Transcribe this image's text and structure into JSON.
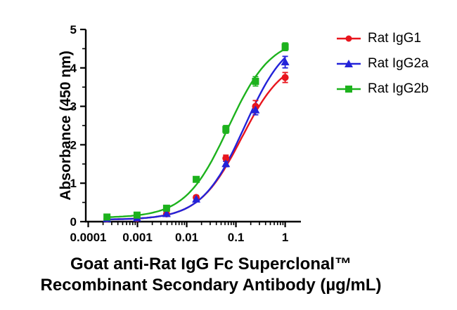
{
  "chart_data": {
    "type": "scatter-line",
    "title": "",
    "xlabel_line1": "Goat anti-Rat IgG Fc Superclonal™",
    "xlabel_line2": "Recombinant Secondary Antibody (µg/mL)",
    "ylabel": "Absorbance (450 nm)",
    "x_scale": "log",
    "grid": false,
    "legend_position": "right-top",
    "xlim_log10": [
      -4.05,
      0.32
    ],
    "ylim": [
      0,
      5
    ],
    "x_tick_values": [
      0.0001,
      0.001,
      0.01,
      0.1,
      1
    ],
    "x_tick_labels": [
      "0.0001",
      "0.001",
      "0.01",
      "0.1",
      "1"
    ],
    "y_tick_values": [
      0,
      1,
      2,
      3,
      4,
      5
    ],
    "y_minor_step": 0.5,
    "x": [
      0.00024,
      0.00098,
      0.0039,
      0.0156,
      0.0625,
      0.25,
      1
    ],
    "series": [
      {
        "name": "Rat IgG1",
        "color": "#e8151d",
        "marker": "circle",
        "values": [
          0.07,
          0.08,
          0.2,
          0.63,
          1.65,
          3.0,
          3.75
        ],
        "errors": [
          0.03,
          0.03,
          0.04,
          0.05,
          0.08,
          0.15,
          0.13
        ],
        "fit": {
          "bottom": 0.05,
          "top": 4.3,
          "ec50": 0.13,
          "hill": 1.0
        }
      },
      {
        "name": "Rat IgG2a",
        "color": "#2323d9",
        "marker": "triangle",
        "values": [
          0.07,
          0.09,
          0.2,
          0.58,
          1.5,
          2.9,
          4.15
        ],
        "errors": [
          0.03,
          0.03,
          0.04,
          0.05,
          0.07,
          0.12,
          0.15
        ],
        "fit": {
          "bottom": 0.05,
          "top": 4.9,
          "ec50": 0.15,
          "hill": 1.0
        }
      },
      {
        "name": "Rat IgG2b",
        "color": "#1db21d",
        "marker": "square",
        "values": [
          0.12,
          0.17,
          0.35,
          1.1,
          2.4,
          3.65,
          4.55
        ],
        "errors": [
          0.03,
          0.03,
          0.04,
          0.06,
          0.1,
          0.12,
          0.1
        ],
        "fit": {
          "bottom": 0.1,
          "top": 4.8,
          "ec50": 0.07,
          "hill": 1.0
        }
      }
    ]
  }
}
